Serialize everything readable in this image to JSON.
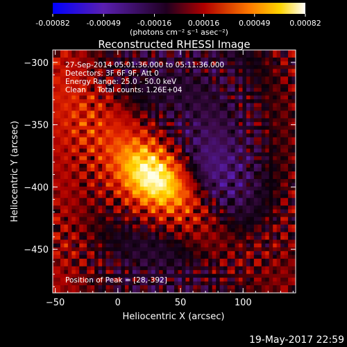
{
  "chart_data": {
    "type": "heatmap",
    "title": "Reconstructed RHESSI Image",
    "xlabel": "Heliocentric X (arcsec)",
    "ylabel": "Heliocentric Y (arcsec)",
    "xlim": [
      -52,
      142
    ],
    "ylim": [
      -485,
      -290
    ],
    "x_ticks": [
      -50,
      0,
      50,
      100
    ],
    "y_ticks": [
      -300,
      -350,
      -400,
      -450
    ],
    "colorbar": {
      "ticks": [
        "-0.00082",
        "-0.00049",
        "-0.00016",
        "0.00016",
        "0.00049",
        "0.00082"
      ],
      "unit_label": "(photons cm⁻² s⁻¹ asec⁻²)",
      "range": [
        -0.00082,
        0.00082
      ]
    },
    "annotations": {
      "time_range": "27-Sep-2014 05:01:36.000 to 05:11:36.000",
      "detectors": "Detectors: 3F 6F 9F, Att 0",
      "energy_range": "Energy Range: 25.0 - 50.0 keV",
      "clean": "Clean     Total counts: 1.26E+04",
      "peak": "Position of Peak = [28,-392]"
    },
    "peak": [
      28,
      -392
    ],
    "colors": {
      "background": "#000000",
      "colormap": [
        "#0000ff",
        "#6a2ea8",
        "#000000",
        "#c00000",
        "#ff6a00",
        "#ffd000",
        "#ffffff"
      ]
    }
  },
  "footer": {
    "timestamp": "19-May-2017 22:59"
  }
}
